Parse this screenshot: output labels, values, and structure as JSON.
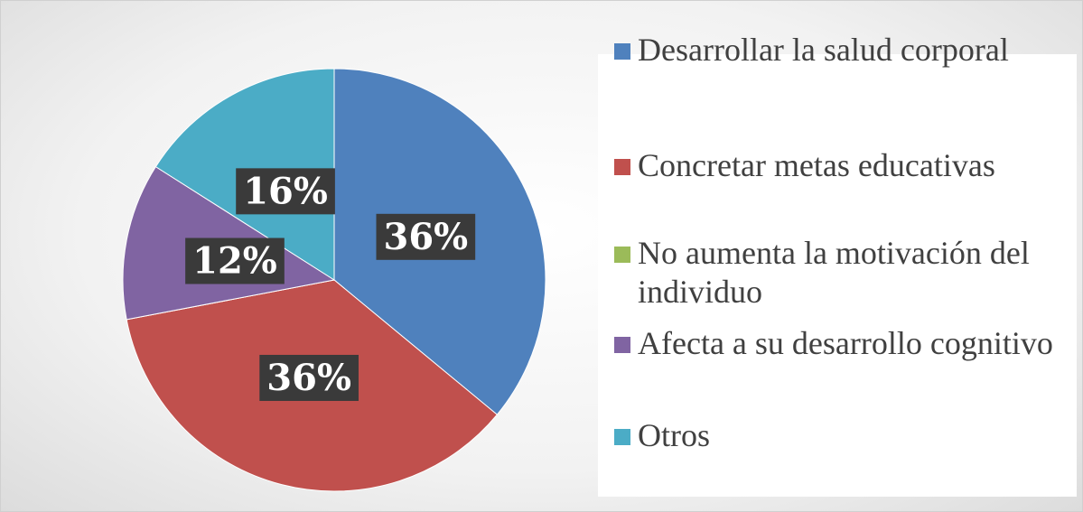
{
  "chart_data": {
    "type": "pie",
    "categories": [
      "Desarrollar la salud corporal",
      "Concretar metas educativas",
      "No aumenta la motivación del individuo",
      "Afecta a su desarrollo cognitivo",
      "Otros"
    ],
    "values": [
      36,
      36,
      0,
      12,
      16
    ],
    "value_labels": [
      "36%",
      "36%",
      null,
      "12%",
      "16%"
    ],
    "colors": [
      "#4f81bd",
      "#c0504d",
      "#9bbb59",
      "#8064a2",
      "#4bacc6"
    ],
    "legend": "right"
  }
}
